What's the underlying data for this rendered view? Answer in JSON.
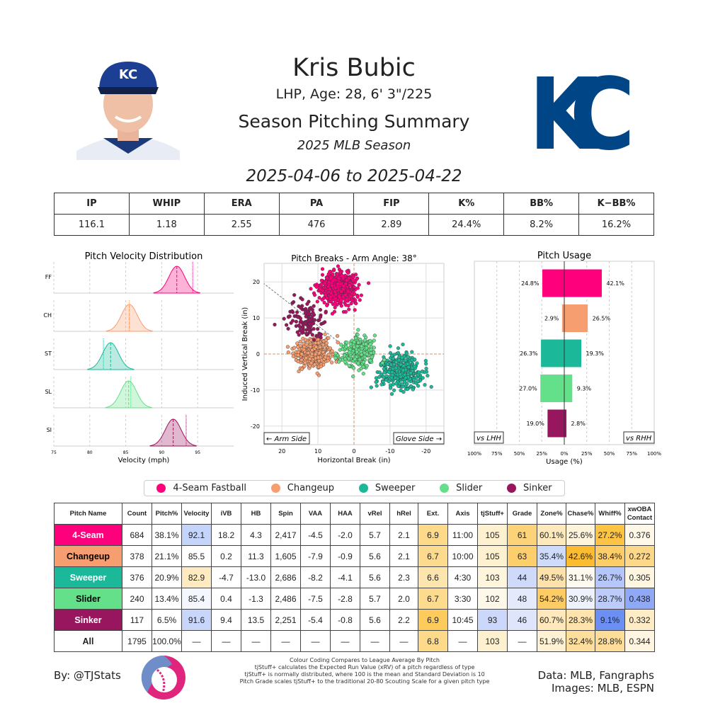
{
  "header": {
    "name": "Kris Bubic",
    "bio": "LHP, Age: 28, 6' 3\"/225",
    "summary": "Season Pitching Summary",
    "season": "2025 MLB Season",
    "dates": "2025-04-06 to 2025-04-22",
    "logo_text": "KC",
    "logo_color": "#004687"
  },
  "stats": {
    "headers": [
      "IP",
      "WHIP",
      "ERA",
      "PA",
      "FIP",
      "K%",
      "BB%",
      "K−BB%"
    ],
    "values": [
      "116.1",
      "1.18",
      "2.55",
      "476",
      "2.89",
      "24.4%",
      "8.2%",
      "16.2%"
    ]
  },
  "pitch_colors": {
    "FF": "#FF007D",
    "CH": "#F79E70",
    "ST": "#1BB999",
    "SL": "#65E08A",
    "SI": "#98165D"
  },
  "chart_data": [
    {
      "type": "area",
      "title": "Pitch Velocity Distribution",
      "xlabel": "Velocity (mph)",
      "xlim": [
        75,
        100
      ],
      "xticks": [
        "75",
        "80",
        "85",
        "90",
        "95"
      ],
      "grid": true,
      "categories": [
        "FF",
        "CH",
        "ST",
        "SL",
        "SI"
      ],
      "mean_velocity": [
        92.1,
        85.5,
        82.9,
        85.4,
        91.6
      ],
      "comparison_velocity": [
        94.3,
        85.5,
        81.9,
        85.7,
        93.4
      ]
    },
    {
      "type": "scatter",
      "title": "Pitch Breaks - Arm Angle: 38°",
      "xlabel": "Horizontal Break (in)",
      "ylabel": "Induced Vertical Break (in)",
      "xlim": [
        25,
        -25
      ],
      "ylim": [
        -25,
        25
      ],
      "xticks": [
        "20",
        "10",
        "0",
        "-10",
        "-20"
      ],
      "yticks": [
        "20",
        "10",
        "0",
        "-10",
        "-20"
      ],
      "arm_angle": 38,
      "left_label": "← Arm Side",
      "right_label": "Glove Side →",
      "grid": true,
      "series": [
        {
          "code": "FF",
          "hb": 4.3,
          "ivb": 18.2,
          "n": 684
        },
        {
          "code": "CH",
          "hb": 11.3,
          "ivb": 0.2,
          "n": 378
        },
        {
          "code": "ST",
          "hb": -13.0,
          "ivb": -4.7,
          "n": 376
        },
        {
          "code": "SL",
          "hb": -1.3,
          "ivb": 0.4,
          "n": 240
        },
        {
          "code": "SI",
          "hb": 13.5,
          "ivb": 9.4,
          "n": 117
        }
      ]
    },
    {
      "type": "bar",
      "title": "Pitch Usage",
      "xlabel": "Usage (%)",
      "xlim": [
        -100,
        100
      ],
      "xticks": [
        "100%",
        "75%",
        "50%",
        "25%",
        "0%",
        "25%",
        "50%",
        "75%",
        "100%"
      ],
      "left_label": "vs LHH",
      "right_label": "vs RHH",
      "grid": true,
      "categories": [
        "FF",
        "CH",
        "ST",
        "SL",
        "SI"
      ],
      "series": [
        {
          "name": "vs LHH",
          "values": [
            24.8,
            2.9,
            26.3,
            27.0,
            19.0
          ],
          "labels": [
            "24.8%",
            "2.9%",
            "26.3%",
            "27.0%",
            "19.0%"
          ]
        },
        {
          "name": "vs RHH",
          "values": [
            42.1,
            26.5,
            19.3,
            9.3,
            2.8
          ],
          "labels": [
            "42.1%",
            "26.5%",
            "19.3%",
            "9.3%",
            "2.8%"
          ]
        }
      ]
    }
  ],
  "legend": [
    {
      "code": "FF",
      "label": "4-Seam Fastball"
    },
    {
      "code": "CH",
      "label": "Changeup"
    },
    {
      "code": "ST",
      "label": "Sweeper"
    },
    {
      "code": "SL",
      "label": "Slider"
    },
    {
      "code": "SI",
      "label": "Sinker"
    }
  ],
  "pitch_table": {
    "headers": [
      "Pitch Name",
      "Count",
      "Pitch%",
      "Velocity",
      "iVB",
      "HB",
      "Spin",
      "VAA",
      "HAA",
      "vRel",
      "hRel",
      "Ext.",
      "Axis",
      "tjStuff+",
      "Grade",
      "Zone%",
      "Chase%",
      "Whiff%",
      "xwOBA Contact"
    ],
    "rows": [
      {
        "code": "FF",
        "cells": [
          "4-Seam",
          "684",
          "38.1%",
          "92.1",
          "18.2",
          "4.3",
          "2,417",
          "-4.5",
          "-2.0",
          "5.7",
          "2.1",
          "6.9",
          "11:00",
          "105",
          "61",
          "60.1%",
          "25.6%",
          "27.2%",
          "0.376"
        ]
      },
      {
        "code": "CH",
        "cells": [
          "Changeup",
          "378",
          "21.1%",
          "85.5",
          "0.2",
          "11.3",
          "1,605",
          "-7.9",
          "-0.9",
          "5.6",
          "2.1",
          "6.7",
          "10:00",
          "105",
          "63",
          "35.4%",
          "42.6%",
          "38.4%",
          "0.272"
        ]
      },
      {
        "code": "ST",
        "cells": [
          "Sweeper",
          "376",
          "20.9%",
          "82.9",
          "-4.7",
          "-13.0",
          "2,686",
          "-8.2",
          "-4.1",
          "5.6",
          "2.3",
          "6.6",
          "4:30",
          "103",
          "44",
          "49.5%",
          "31.1%",
          "26.7%",
          "0.305"
        ]
      },
      {
        "code": "SL",
        "cells": [
          "Slider",
          "240",
          "13.4%",
          "85.4",
          "0.4",
          "-1.3",
          "2,486",
          "-7.5",
          "-2.8",
          "5.7",
          "2.0",
          "6.7",
          "3:30",
          "102",
          "48",
          "54.2%",
          "30.9%",
          "28.7%",
          "0.438"
        ]
      },
      {
        "code": "SI",
        "cells": [
          "Sinker",
          "117",
          "6.5%",
          "91.6",
          "9.4",
          "13.5",
          "2,251",
          "-5.4",
          "-0.8",
          "5.6",
          "2.2",
          "6.9",
          "10:45",
          "93",
          "46",
          "60.7%",
          "28.3%",
          "9.1%",
          "0.332"
        ]
      },
      {
        "code": "ALL",
        "cells": [
          "All",
          "1795",
          "100.0%",
          "—",
          "—",
          "—",
          "—",
          "—",
          "—",
          "—",
          "—",
          "6.8",
          "—",
          "103",
          "—",
          "51.9%",
          "32.4%",
          "28.8%",
          "0.344"
        ]
      }
    ],
    "cell_colors": [
      [
        "",
        "",
        "",
        "#c5d4fb",
        "",
        "",
        "",
        "",
        "",
        "",
        "",
        "#fdd98a",
        "",
        "#fef1cf",
        "#fdd37a",
        "#fee9bd",
        "#fef4dc",
        "#fcc445",
        "#fff8e8"
      ],
      [
        "",
        "",
        "",
        "",
        "",
        "",
        "",
        "",
        "",
        "",
        "",
        "#fddb8e",
        "",
        "#fef1cf",
        "#fdcf6c",
        "#cfdbfb",
        "#fcbc30",
        "#fdcd68",
        "#fdd889"
      ],
      [
        "",
        "",
        "",
        "#feebc2",
        "",
        "",
        "",
        "",
        "",
        "",
        "",
        "#fee4ad",
        "",
        "#fef5dd",
        "#cfdafb",
        "#fee2ab",
        "#fffaf0",
        "#b5c6fa",
        "#fef6e1"
      ],
      [
        "",
        "",
        "",
        "#f5f7fe",
        "",
        "",
        "",
        "",
        "",
        "",
        "",
        "#fddb8e",
        "",
        "#fef8ea",
        "#e4eafc",
        "#fdcc64",
        "#eef2fd",
        "#bccbfa",
        "#8fa9f6"
      ],
      [
        "",
        "",
        "",
        "#c9d6fb",
        "",
        "",
        "",
        "",
        "",
        "",
        "",
        "#fdca5c",
        "",
        "#cbd7fb",
        "#dfe6fc",
        "#fee8bc",
        "#fee3ad",
        "#6c8ff3",
        "#feecc6"
      ],
      [
        "",
        "",
        "",
        "",
        "",
        "",
        "",
        "",
        "",
        "",
        "",
        "#fdd98a",
        "",
        "#fef1cf",
        "",
        "#fef1d4",
        "#fdde9c",
        "#fddd98",
        "#fff5e0"
      ]
    ]
  },
  "footer": {
    "by": "By: @TJStats",
    "notes": [
      "Colour Coding Compares to League Average By Pitch",
      "tjStuff+ calculates the Expected Run Value (xRV) of a pitch regardless of type",
      "tjStuff+ is normally distributed, where 100 is the mean and Standard Deviation is 10",
      "Pitch Grade scales tjStuff+ to the traditional 20-80 Scouting Scale for a given pitch type"
    ],
    "source": "Data: MLB, Fangraphs",
    "images": "Images: MLB, ESPN"
  }
}
